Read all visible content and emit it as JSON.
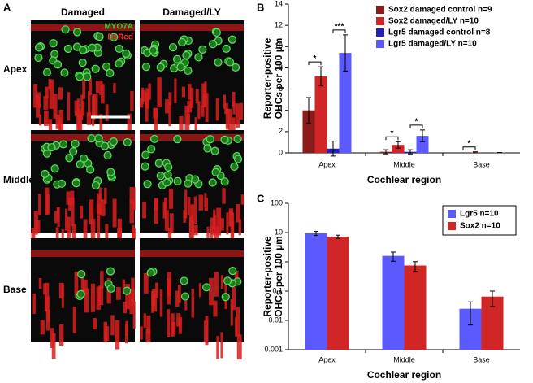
{
  "panel_a": {
    "panel": "A",
    "columns": [
      "Damaged",
      "Damaged/LY"
    ],
    "rows": [
      "Apex",
      "Middle",
      "Base"
    ],
    "stains": [
      "MYO7A",
      "DsRed"
    ]
  },
  "chart_data": [
    {
      "type": "bar",
      "panel": "B",
      "ylabel": [
        "Reporter-positive",
        "OHCs per 100 µm"
      ],
      "xlabel": "Cochlear region",
      "categories": [
        "Apex",
        "Middle",
        "Base"
      ],
      "series": [
        {
          "name": "Sox2 damaged control n=9",
          "color": "#8b1a1a",
          "values": [
            4.0,
            0.1,
            0.0
          ],
          "errors": [
            1.2,
            0.2,
            0.0
          ]
        },
        {
          "name": "Sox2 damaged/LY n=10",
          "color": "#d02626",
          "values": [
            7.2,
            0.75,
            0.05
          ],
          "errors": [
            0.9,
            0.3,
            0.05
          ]
        },
        {
          "name": "Lgr5 damaged control n=8",
          "color": "#2222b8",
          "values": [
            0.4,
            0.1,
            0.0
          ],
          "errors": [
            0.7,
            0.2,
            0.0
          ]
        },
        {
          "name": "Lgr5 damaged/LY n=10",
          "color": "#5a5aff",
          "values": [
            9.4,
            1.6,
            0.02
          ],
          "errors": [
            1.7,
            0.55,
            0.02
          ]
        }
      ],
      "annotations": [
        "*",
        "***",
        "*",
        "*",
        "*"
      ],
      "ylim": [
        0,
        14
      ],
      "yticks": [
        0,
        2,
        4,
        6,
        8,
        10,
        12,
        14
      ],
      "log": false
    },
    {
      "type": "bar",
      "panel": "C",
      "ylabel": [
        "Reporter-positive",
        "OHCs per 100 µm"
      ],
      "xlabel": "Cochlear region",
      "categories": [
        "Apex",
        "Middle",
        "Base"
      ],
      "series": [
        {
          "name": "Lgr5 n=10",
          "color": "#5a5aff",
          "values": [
            9.4,
            1.6,
            0.025
          ],
          "errors": [
            1.5,
            0.55,
            0.018
          ]
        },
        {
          "name": "Sox2 n=10",
          "color": "#d02626",
          "values": [
            7.2,
            0.75,
            0.065
          ],
          "errors": [
            0.9,
            0.27,
            0.035
          ]
        }
      ],
      "ylim": [
        0.001,
        100
      ],
      "yticks": [
        0.001,
        0.01,
        0.1,
        1,
        10,
        100
      ],
      "log": true
    }
  ]
}
